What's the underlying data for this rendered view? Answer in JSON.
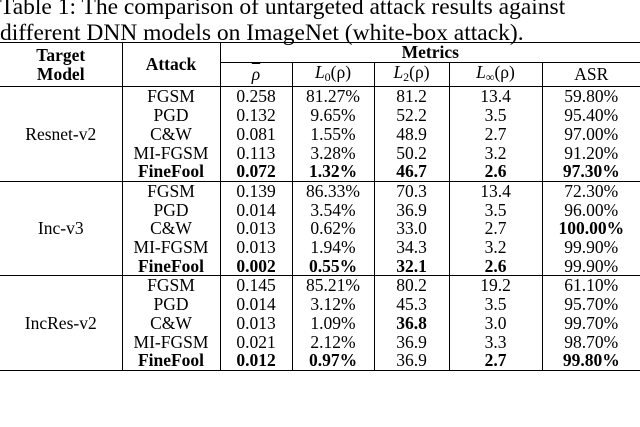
{
  "caption": {
    "line1": "Table 1: The comparison of untargeted attack results against",
    "line2": "different DNN models on ImageNet (white-box attack)."
  },
  "headers": {
    "target_model_line1": "Target",
    "target_model_line2": "Model",
    "attack": "Attack",
    "metrics": "Metrics",
    "rho_bar": "ρ",
    "l0": "L0(ρ)",
    "l0_base": "L",
    "l0_sub": "0",
    "l0_arg": "(ρ)",
    "l2_base": "L",
    "l2_sub": "2",
    "l2_arg": "(ρ)",
    "linf_base": "L",
    "linf_sub": "∞",
    "linf_arg": "(ρ)",
    "asr": "ASR"
  },
  "groups": [
    {
      "model": "Resnet-v2",
      "rows": [
        {
          "attack": "FGSM",
          "rho": "0.258",
          "l0": "81.27%",
          "l2": "81.2",
          "linf": "13.4",
          "asr": "59.80%",
          "bold": []
        },
        {
          "attack": "PGD",
          "rho": "0.132",
          "l0": "9.65%",
          "l2": "52.2",
          "linf": "3.5",
          "asr": "95.40%",
          "bold": []
        },
        {
          "attack": "C&W",
          "rho": "0.081",
          "l0": "1.55%",
          "l2": "48.9",
          "linf": "2.7",
          "asr": "97.00%",
          "bold": []
        },
        {
          "attack": "MI-FGSM",
          "rho": "0.113",
          "l0": "3.28%",
          "l2": "50.2",
          "linf": "3.2",
          "asr": "91.20%",
          "bold": []
        },
        {
          "attack": "FineFool",
          "rho": "0.072",
          "l0": "1.32%",
          "l2": "46.7",
          "linf": "2.6",
          "asr": "97.30%",
          "bold": [
            "attack",
            "rho",
            "l0",
            "l2",
            "linf",
            "asr"
          ]
        }
      ]
    },
    {
      "model": "Inc-v3",
      "rows": [
        {
          "attack": "FGSM",
          "rho": "0.139",
          "l0": "86.33%",
          "l2": "70.3",
          "linf": "13.4",
          "asr": "72.30%",
          "bold": []
        },
        {
          "attack": "PGD",
          "rho": "0.014",
          "l0": "3.54%",
          "l2": "36.9",
          "linf": "3.5",
          "asr": "96.00%",
          "bold": []
        },
        {
          "attack": "C&W",
          "rho": "0.013",
          "l0": "0.62%",
          "l2": "33.0",
          "linf": "2.7",
          "asr": "100.00%",
          "bold": [
            "asr"
          ]
        },
        {
          "attack": "MI-FGSM",
          "rho": "0.013",
          "l0": "1.94%",
          "l2": "34.3",
          "linf": "3.2",
          "asr": "99.90%",
          "bold": []
        },
        {
          "attack": "FineFool",
          "rho": "0.002",
          "l0": "0.55%",
          "l2": "32.1",
          "linf": "2.6",
          "asr": "99.90%",
          "bold": [
            "attack",
            "rho",
            "l0",
            "l2",
            "linf"
          ]
        }
      ]
    },
    {
      "model": "IncRes-v2",
      "rows": [
        {
          "attack": "FGSM",
          "rho": "0.145",
          "l0": "85.21%",
          "l2": "80.2",
          "linf": "19.2",
          "asr": "61.10%",
          "bold": []
        },
        {
          "attack": "PGD",
          "rho": "0.014",
          "l0": "3.12%",
          "l2": "45.3",
          "linf": "3.5",
          "asr": "95.70%",
          "bold": []
        },
        {
          "attack": "C&W",
          "rho": "0.013",
          "l0": "1.09%",
          "l2": "36.8",
          "linf": "3.0",
          "asr": "99.70%",
          "bold": [
            "l2"
          ]
        },
        {
          "attack": "MI-FGSM",
          "rho": "0.021",
          "l0": "2.12%",
          "l2": "36.9",
          "linf": "3.3",
          "asr": "98.70%",
          "bold": []
        },
        {
          "attack": "FineFool",
          "rho": "0.012",
          "l0": "0.97%",
          "l2": "36.9",
          "linf": "2.7",
          "asr": "99.80%",
          "bold": [
            "attack",
            "rho",
            "l0",
            "linf",
            "asr"
          ]
        }
      ]
    }
  ]
}
